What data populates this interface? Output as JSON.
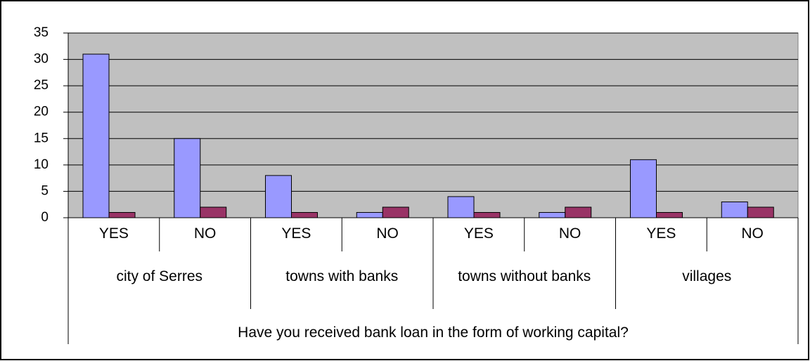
{
  "chart_data": {
    "type": "bar",
    "categories": [
      "YES",
      "NO",
      "YES",
      "NO",
      "YES",
      "NO",
      "YES",
      "NO"
    ],
    "groups": [
      "city of Serres",
      "towns with banks",
      "towns without banks",
      "villages"
    ],
    "x_label": "Have you received bank loan in the form of working capital?",
    "series": [
      {
        "color": "#9999ff",
        "values": [
          31,
          15,
          8,
          1,
          4,
          1,
          11,
          3
        ]
      },
      {
        "color": "#993366",
        "values": [
          1,
          2,
          1,
          2,
          1,
          2,
          1,
          2
        ]
      }
    ],
    "ylim": [
      0,
      35
    ],
    "yticks": [
      0,
      5,
      10,
      15,
      20,
      25,
      30,
      35
    ],
    "grid": true
  }
}
